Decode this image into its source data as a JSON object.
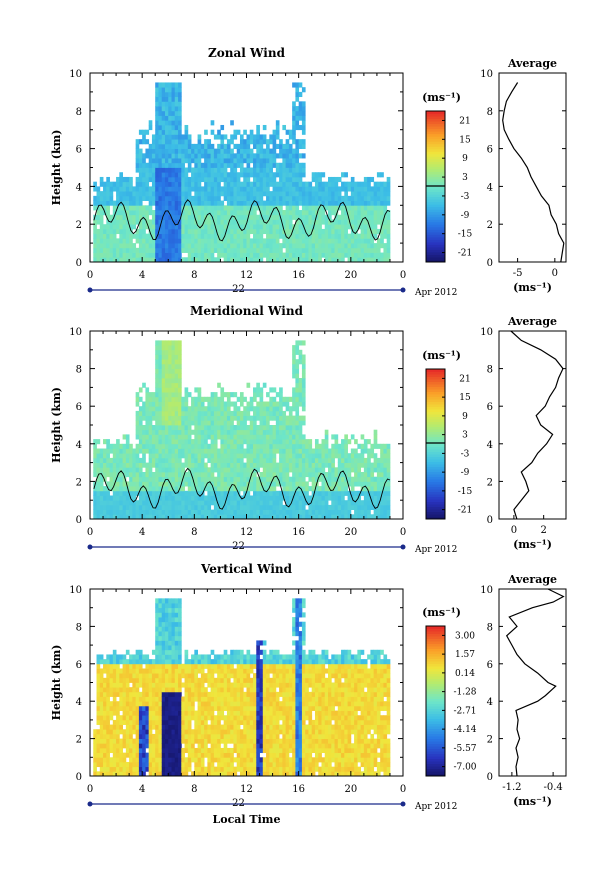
{
  "chart_data": [
    {
      "type": "heatmap",
      "title": "Zonal Wind",
      "ylabel": "Height (km)",
      "xlabel": "",
      "day_label": "22",
      "date_label": "Apr 2012",
      "x_ticks": [
        "0",
        "4",
        "8",
        "12",
        "16",
        "20",
        "0"
      ],
      "y_ticks": [
        "0",
        "2",
        "4",
        "6",
        "8",
        "10"
      ],
      "xlim": [
        0,
        24
      ],
      "ylim": [
        0,
        10
      ],
      "colorbar_unit": "(ms⁻¹)",
      "colorbar_ticks": [
        "-21",
        "-15",
        "-9",
        "-3",
        "3",
        "9",
        "15",
        "21"
      ],
      "colorbar_range": [
        -24,
        24
      ],
      "average_profile": {
        "title": "Average",
        "xlabel": "(ms⁻¹)",
        "x_ticks": [
          "-5",
          "0"
        ],
        "xlim": [
          -7.5,
          1.5
        ],
        "ylim": [
          0,
          10
        ],
        "y_ticks": [
          "0",
          "2",
          "4",
          "6",
          "8",
          "10"
        ],
        "points": [
          [
            0.8,
            0.0
          ],
          [
            1.0,
            0.5
          ],
          [
            1.2,
            1.0
          ],
          [
            0.5,
            1.5
          ],
          [
            0.2,
            2.0
          ],
          [
            -0.5,
            2.5
          ],
          [
            -0.8,
            3.0
          ],
          [
            -1.8,
            3.5
          ],
          [
            -2.5,
            4.0
          ],
          [
            -3.2,
            4.5
          ],
          [
            -3.7,
            5.0
          ],
          [
            -4.5,
            5.5
          ],
          [
            -5.5,
            6.0
          ],
          [
            -6.2,
            6.5
          ],
          [
            -6.8,
            7.0
          ],
          [
            -7.0,
            7.5
          ],
          [
            -6.8,
            8.0
          ],
          [
            -6.5,
            8.5
          ],
          [
            -5.8,
            9.0
          ],
          [
            -5.0,
            9.5
          ]
        ]
      }
    },
    {
      "type": "heatmap",
      "title": "Meridional Wind",
      "ylabel": "Height (km)",
      "xlabel": "",
      "day_label": "22",
      "date_label": "Apr 2012",
      "x_ticks": [
        "0",
        "4",
        "8",
        "12",
        "16",
        "20",
        "0"
      ],
      "y_ticks": [
        "0",
        "2",
        "4",
        "6",
        "8",
        "10"
      ],
      "xlim": [
        0,
        24
      ],
      "ylim": [
        0,
        10
      ],
      "colorbar_unit": "(ms⁻¹)",
      "colorbar_ticks": [
        "-21",
        "-15",
        "-9",
        "-3",
        "3",
        "9",
        "15",
        "21"
      ],
      "colorbar_range": [
        -24,
        24
      ],
      "average_profile": {
        "title": "Average",
        "xlabel": "(ms⁻¹)",
        "x_ticks": [
          "0",
          "2"
        ],
        "xlim": [
          -1,
          3.5
        ],
        "ylim": [
          0,
          10
        ],
        "y_ticks": [
          "0",
          "2",
          "4",
          "6",
          "8",
          "10"
        ],
        "points": [
          [
            0.2,
            0.0
          ],
          [
            0.0,
            0.5
          ],
          [
            0.5,
            1.0
          ],
          [
            1.0,
            1.5
          ],
          [
            0.8,
            2.0
          ],
          [
            0.5,
            2.5
          ],
          [
            1.2,
            3.0
          ],
          [
            1.6,
            3.5
          ],
          [
            2.2,
            4.0
          ],
          [
            2.6,
            4.5
          ],
          [
            1.8,
            5.0
          ],
          [
            1.5,
            5.5
          ],
          [
            2.1,
            6.0
          ],
          [
            2.4,
            6.5
          ],
          [
            2.8,
            7.0
          ],
          [
            3.0,
            7.5
          ],
          [
            3.3,
            8.0
          ],
          [
            2.8,
            8.5
          ],
          [
            1.8,
            9.0
          ],
          [
            0.5,
            9.5
          ],
          [
            -0.2,
            10.0
          ]
        ]
      }
    },
    {
      "type": "heatmap",
      "title": "Vertical Wind",
      "ylabel": "Height (km)",
      "xlabel": "Local Time",
      "day_label": "22",
      "date_label": "Apr 2012",
      "x_ticks": [
        "0",
        "4",
        "8",
        "12",
        "16",
        "20",
        "0"
      ],
      "y_ticks": [
        "0",
        "2",
        "4",
        "6",
        "8",
        "10"
      ],
      "xlim": [
        0,
        24
      ],
      "ylim": [
        0,
        10
      ],
      "colorbar_unit": "(ms⁻¹)",
      "colorbar_ticks": [
        "-7.00",
        "-5.57",
        "-4.14",
        "-2.71",
        "-1.28",
        "0.14",
        "1.57",
        "3.00"
      ],
      "colorbar_range": [
        -7.72,
        3.72
      ],
      "average_profile": {
        "title": "Average",
        "xlabel": "(ms⁻¹)",
        "x_ticks": [
          "-1.2",
          "-0.4"
        ],
        "xlim": [
          -1.45,
          -0.15
        ],
        "ylim": [
          0,
          10
        ],
        "y_ticks": [
          "0",
          "2",
          "4",
          "6",
          "8",
          "10"
        ],
        "points": [
          [
            -1.1,
            0.0
          ],
          [
            -1.12,
            0.5
          ],
          [
            -1.08,
            1.0
          ],
          [
            -1.12,
            1.5
          ],
          [
            -1.05,
            2.0
          ],
          [
            -1.1,
            2.5
          ],
          [
            -1.08,
            3.0
          ],
          [
            -1.12,
            3.5
          ],
          [
            -0.7,
            4.0
          ],
          [
            -0.55,
            4.3
          ],
          [
            -0.35,
            4.8
          ],
          [
            -0.5,
            5.0
          ],
          [
            -0.7,
            5.5
          ],
          [
            -0.95,
            6.0
          ],
          [
            -1.1,
            6.5
          ],
          [
            -1.2,
            7.0
          ],
          [
            -1.3,
            7.5
          ],
          [
            -1.1,
            8.0
          ],
          [
            -1.25,
            8.5
          ],
          [
            -0.8,
            9.0
          ],
          [
            -0.4,
            9.3
          ],
          [
            -0.2,
            9.6
          ],
          [
            -0.5,
            10.0
          ]
        ]
      }
    }
  ]
}
